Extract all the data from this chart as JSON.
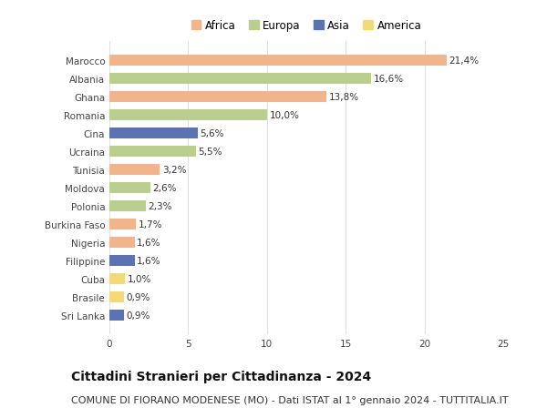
{
  "categories": [
    "Marocco",
    "Albania",
    "Ghana",
    "Romania",
    "Cina",
    "Ucraina",
    "Tunisia",
    "Moldova",
    "Polonia",
    "Burkina Faso",
    "Nigeria",
    "Filippine",
    "Cuba",
    "Brasile",
    "Sri Lanka"
  ],
  "values": [
    21.4,
    16.6,
    13.8,
    10.0,
    5.6,
    5.5,
    3.2,
    2.6,
    2.3,
    1.7,
    1.6,
    1.6,
    1.0,
    0.9,
    0.9
  ],
  "labels": [
    "21,4%",
    "16,6%",
    "13,8%",
    "10,0%",
    "5,6%",
    "5,5%",
    "3,2%",
    "2,6%",
    "2,3%",
    "1,7%",
    "1,6%",
    "1,6%",
    "1,0%",
    "0,9%",
    "0,9%"
  ],
  "continents": [
    "Africa",
    "Europa",
    "Africa",
    "Europa",
    "Asia",
    "Europa",
    "Africa",
    "Europa",
    "Europa",
    "Africa",
    "Africa",
    "Asia",
    "America",
    "America",
    "Asia"
  ],
  "colors": {
    "Africa": "#F2B48C",
    "Europa": "#BACF8F",
    "Asia": "#5B73B0",
    "America": "#F2D97A"
  },
  "legend_order": [
    "Africa",
    "Europa",
    "Asia",
    "America"
  ],
  "title": "Cittadini Stranieri per Cittadinanza - 2024",
  "subtitle": "COMUNE DI FIORANO MODENESE (MO) - Dati ISTAT al 1° gennaio 2024 - TUTTITALIA.IT",
  "xlim": [
    0,
    25
  ],
  "xticks": [
    0,
    5,
    10,
    15,
    20,
    25
  ],
  "background_color": "#ffffff",
  "grid_color": "#e0e0e0",
  "title_fontsize": 10,
  "subtitle_fontsize": 8,
  "label_fontsize": 7.5,
  "tick_fontsize": 7.5,
  "legend_fontsize": 8.5
}
